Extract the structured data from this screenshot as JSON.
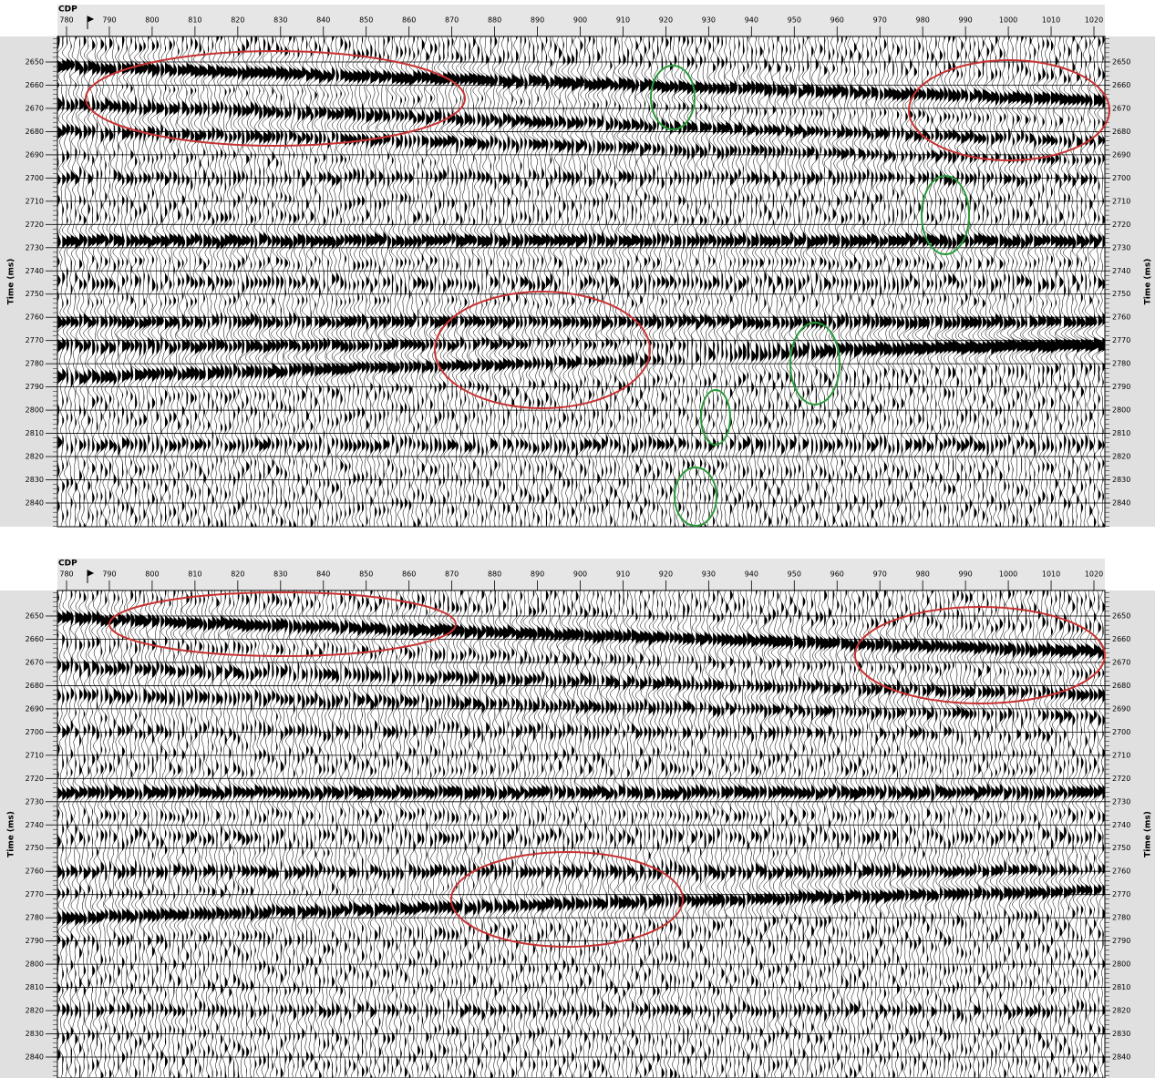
{
  "panels": [
    {
      "cdp_label": "CDP",
      "time_label": "Time (ms)",
      "cdp_ticks": [
        780,
        790,
        800,
        810,
        820,
        830,
        840,
        850,
        860,
        870,
        880,
        890,
        900,
        910,
        920,
        930,
        940,
        950,
        960,
        970,
        980,
        990,
        1000,
        1010,
        1020
      ],
      "time_ticks": [
        2650,
        2660,
        2670,
        2680,
        2690,
        2700,
        2710,
        2720,
        2730,
        2740,
        2750,
        2760,
        2770,
        2780,
        2790,
        2800,
        2810,
        2820,
        2830,
        2840
      ]
    },
    {
      "cdp_label": "CDP",
      "time_label": "Time (ms)",
      "cdp_ticks": [
        780,
        790,
        800,
        810,
        820,
        830,
        840,
        850,
        860,
        870,
        880,
        890,
        900,
        910,
        920,
        930,
        940,
        950,
        960,
        970,
        980,
        990,
        1000,
        1010,
        1020
      ],
      "time_ticks": [
        2650,
        2660,
        2670,
        2680,
        2690,
        2700,
        2710,
        2720,
        2730,
        2740,
        2750,
        2760,
        2770,
        2780,
        2790,
        2800,
        2810,
        2820,
        2830,
        2840
      ]
    }
  ]
}
